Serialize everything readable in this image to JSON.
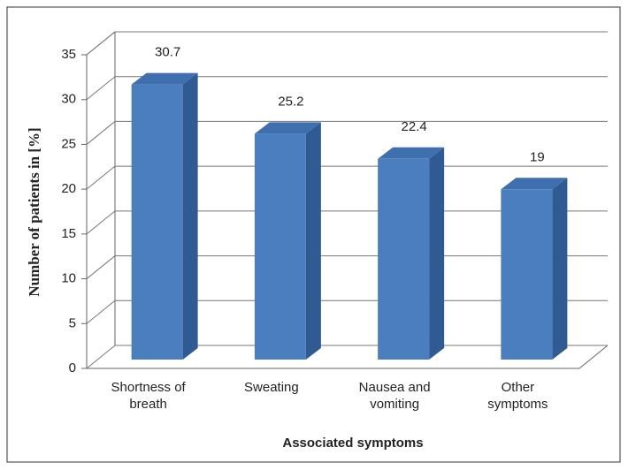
{
  "chart_data": {
    "type": "bar",
    "x_label": "Associated symptoms",
    "y_label": "Number of patients in [%]",
    "categories": [
      "Shortness of breath",
      "Sweating",
      "Nausea and vomiting",
      "Other symptoms"
    ],
    "values": [
      30.7,
      25.2,
      22.4,
      19
    ],
    "color": "#4a7ebf",
    "ylim": [
      0,
      35
    ],
    "yticks": [
      0,
      5,
      10,
      15,
      20,
      25,
      30,
      35
    ],
    "grid": true
  }
}
